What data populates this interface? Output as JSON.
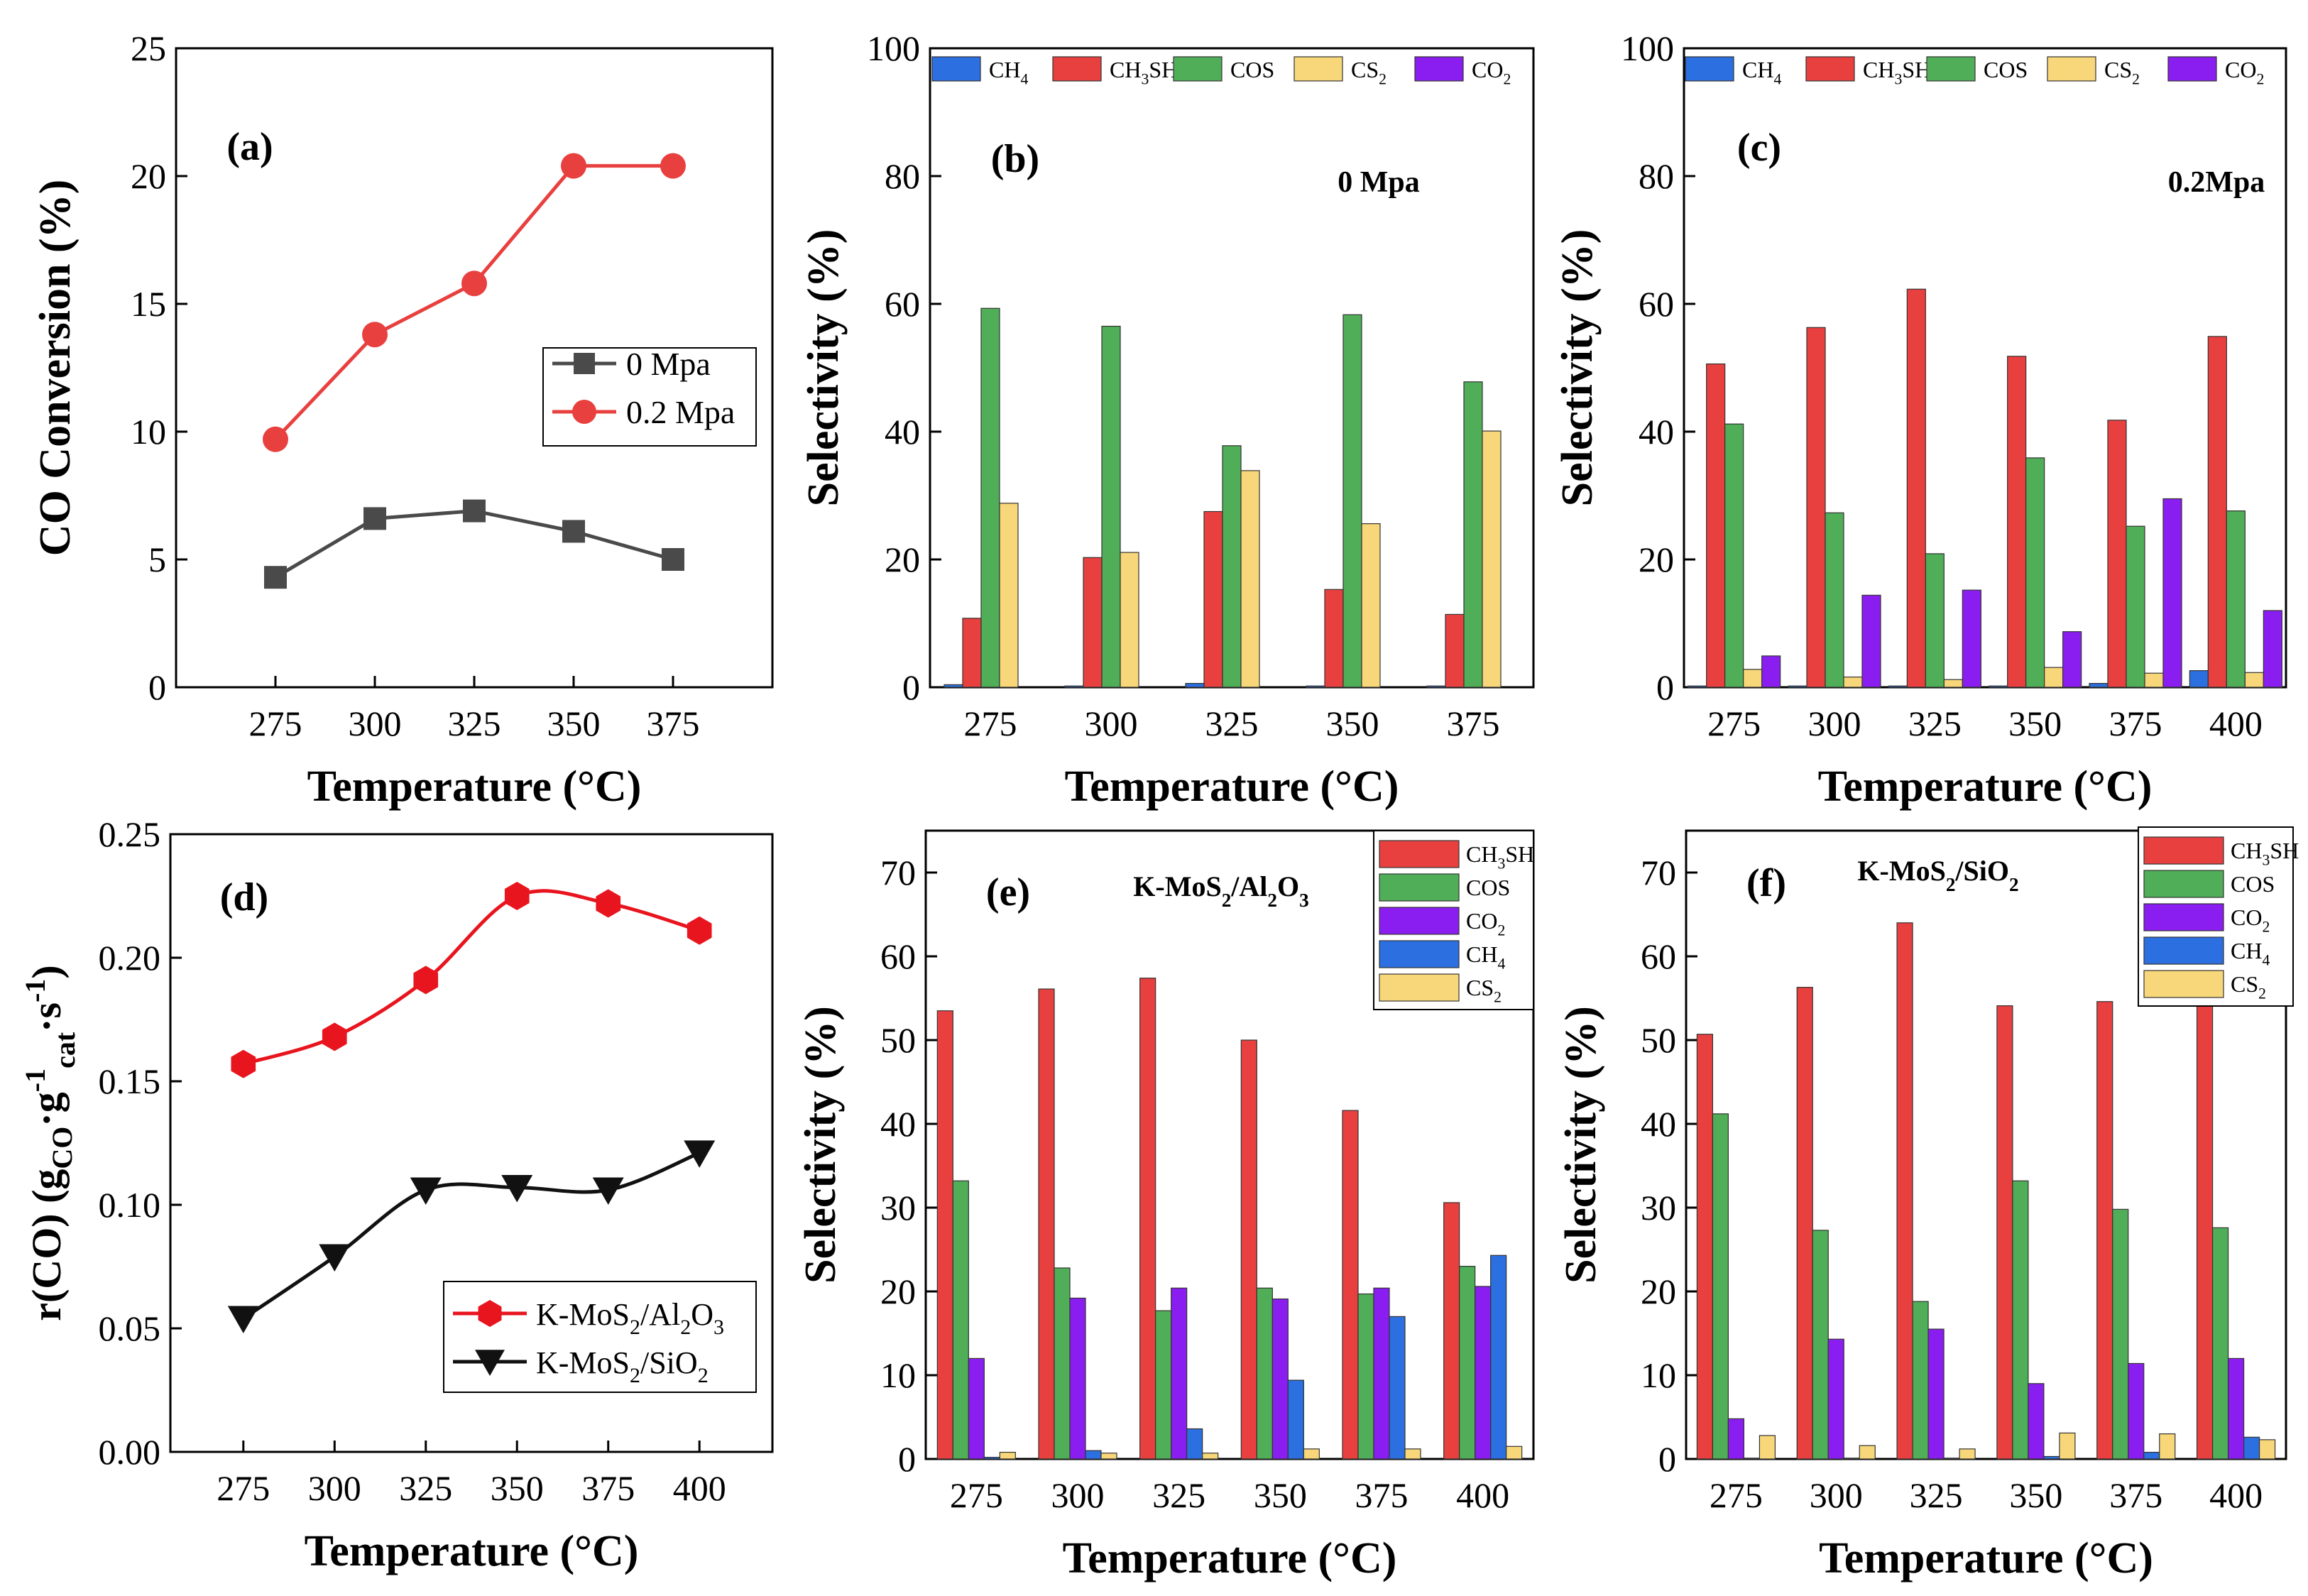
{
  "colors": {
    "CH4": "#2b6fe0",
    "CH3SH": "#e8403f",
    "COS": "#4fae57",
    "CS2": "#f8d77a",
    "CO2": "#8a1ef0",
    "series_0mpa": "#4a4a4a",
    "series_02mpa": "#e8403f",
    "series_al2o3": "#e8141e",
    "series_sio2": "#111111"
  },
  "chart_data": [
    {
      "panel": "a",
      "type": "line",
      "label": "(a)",
      "xlabel": "Temperature (°C)",
      "ylabel": "CO Conversion (%)",
      "ylim": [
        0,
        25
      ],
      "yticks": [
        "0",
        "5",
        "10",
        "15",
        "20",
        "25"
      ],
      "x": [
        275,
        300,
        325,
        350,
        375
      ],
      "xticks": [
        "275",
        "300",
        "325",
        "350",
        "375"
      ],
      "series": [
        {
          "name": "0 Mpa",
          "values": [
            4.3,
            6.6,
            6.9,
            6.1,
            5.0
          ]
        },
        {
          "name": "0.2 Mpa",
          "values": [
            9.7,
            13.8,
            15.8,
            20.4,
            20.4
          ]
        }
      ],
      "legend": "center-right"
    },
    {
      "panel": "b",
      "type": "bar",
      "label": "(b)",
      "annotation": "0 Mpa",
      "xlabel": "Temperature (°C)",
      "ylabel": "Selectivity (%)",
      "ylim": [
        0,
        100
      ],
      "yticks": [
        "0",
        "20",
        "40",
        "60",
        "80",
        "100"
      ],
      "categories": [
        "275",
        "300",
        "325",
        "350",
        "375"
      ],
      "series": [
        {
          "name": "CH4",
          "base": "CH",
          "sub": "4",
          "after": "",
          "values": [
            0.4,
            0.2,
            0.6,
            0.2,
            0.2
          ]
        },
        {
          "name": "CH3SH",
          "base": "CH",
          "sub": "3",
          "after": "SH",
          "values": [
            10.8,
            20.3,
            27.5,
            15.3,
            11.4
          ]
        },
        {
          "name": "COS",
          "base": "COS",
          "sub": "",
          "after": "",
          "values": [
            59.3,
            56.5,
            37.8,
            58.3,
            47.8
          ]
        },
        {
          "name": "CS2",
          "base": "CS",
          "sub": "2",
          "after": "",
          "values": [
            28.8,
            21.1,
            33.9,
            25.6,
            40.1
          ]
        },
        {
          "name": "CO2",
          "base": "CO",
          "sub": "2",
          "after": "",
          "values": [
            0,
            0,
            0,
            0,
            0
          ]
        }
      ],
      "legend": "top"
    },
    {
      "panel": "c",
      "type": "bar",
      "label": "(c)",
      "annotation": "0.2Mpa",
      "xlabel": "Temperature (°C)",
      "ylabel": "Selectivity (%)",
      "ylim": [
        0,
        100
      ],
      "yticks": [
        "0",
        "20",
        "40",
        "60",
        "80",
        "100"
      ],
      "categories": [
        "275",
        "300",
        "325",
        "350",
        "375",
        "400"
      ],
      "series": [
        {
          "name": "CH4",
          "base": "CH",
          "sub": "4",
          "after": "",
          "values": [
            0.2,
            0.2,
            0.2,
            0.2,
            0.6,
            2.6
          ]
        },
        {
          "name": "CH3SH",
          "base": "CH",
          "sub": "3",
          "after": "SH",
          "values": [
            50.6,
            56.3,
            62.3,
            51.8,
            41.8,
            54.9
          ]
        },
        {
          "name": "COS",
          "base": "COS",
          "sub": "",
          "after": "",
          "values": [
            41.2,
            27.3,
            20.9,
            35.9,
            25.2,
            27.6
          ]
        },
        {
          "name": "CS2",
          "base": "CS",
          "sub": "2",
          "after": "",
          "values": [
            2.8,
            1.6,
            1.2,
            3.1,
            2.2,
            2.3
          ]
        },
        {
          "name": "CO2",
          "base": "CO",
          "sub": "2",
          "after": "",
          "values": [
            4.9,
            14.4,
            15.2,
            8.7,
            29.5,
            12.0
          ]
        }
      ],
      "legend": "top"
    },
    {
      "panel": "d",
      "type": "line",
      "label": "(d)",
      "xlabel": "Temperature (°C)",
      "ylabel": "r(CO) (gCO·g⁻¹cat·s⁻¹)",
      "ylim": [
        0,
        0.25
      ],
      "yticks": [
        "0.00",
        "0.05",
        "0.10",
        "0.15",
        "0.20",
        "0.25"
      ],
      "x": [
        275,
        300,
        325,
        350,
        375,
        400
      ],
      "xticks": [
        "275",
        "300",
        "325",
        "350",
        "375",
        "400"
      ],
      "series": [
        {
          "name": "K-MoS2/Al2O3",
          "values": [
            0.157,
            0.168,
            0.191,
            0.225,
            0.222,
            0.211
          ]
        },
        {
          "name": "K-MoS2/SiO2",
          "values": [
            0.054,
            0.079,
            0.106,
            0.107,
            0.106,
            0.121
          ]
        }
      ],
      "legend": "bottom-right"
    },
    {
      "panel": "e",
      "type": "bar",
      "label": "(e)",
      "annotation": "K-MoS2/Al2O3",
      "xlabel": "Temperature (°C)",
      "ylabel": "Selectivity (%)",
      "ylim": [
        0,
        75
      ],
      "yticks": [
        "0",
        "10",
        "20",
        "30",
        "40",
        "50",
        "60",
        "70"
      ],
      "categories": [
        "275",
        "300",
        "325",
        "350",
        "375",
        "400"
      ],
      "series": [
        {
          "name": "CH3SH",
          "base": "CH",
          "sub": "3",
          "after": "SH",
          "values": [
            53.5,
            56.1,
            57.4,
            50.0,
            41.6,
            30.6
          ]
        },
        {
          "name": "COS",
          "base": "COS",
          "sub": "",
          "after": "",
          "values": [
            33.2,
            22.8,
            17.7,
            20.4,
            19.7,
            23.0
          ]
        },
        {
          "name": "CO2",
          "base": "CO",
          "sub": "2",
          "after": "",
          "values": [
            12.0,
            19.2,
            20.4,
            19.1,
            20.4,
            20.6
          ]
        },
        {
          "name": "CH4",
          "base": "CH",
          "sub": "4",
          "after": "",
          "values": [
            0.2,
            1.0,
            3.6,
            9.4,
            17.0,
            24.3
          ]
        },
        {
          "name": "CS2",
          "base": "CS",
          "sub": "2",
          "after": "",
          "values": [
            0.8,
            0.7,
            0.7,
            1.2,
            1.2,
            1.5
          ]
        }
      ],
      "legend": "top-right"
    },
    {
      "panel": "f",
      "type": "bar",
      "label": "(f)",
      "annotation": "K-MoS2/SiO2",
      "xlabel": "Temperature (°C)",
      "ylabel": "Selectivity (%)",
      "ylim": [
        0,
        75
      ],
      "yticks": [
        "0",
        "10",
        "20",
        "30",
        "40",
        "50",
        "60",
        "70"
      ],
      "categories": [
        "275",
        "300",
        "325",
        "350",
        "375",
        "400"
      ],
      "series": [
        {
          "name": "CH3SH",
          "base": "CH",
          "sub": "3",
          "after": "SH",
          "values": [
            50.7,
            56.3,
            64.0,
            54.1,
            54.6,
            55.0
          ]
        },
        {
          "name": "COS",
          "base": "COS",
          "sub": "",
          "after": "",
          "values": [
            41.2,
            27.3,
            18.8,
            33.2,
            29.8,
            27.6
          ]
        },
        {
          "name": "CO2",
          "base": "CO",
          "sub": "2",
          "after": "",
          "values": [
            4.8,
            14.3,
            15.5,
            9.0,
            11.4,
            12.0
          ]
        },
        {
          "name": "CH4",
          "base": "CH",
          "sub": "4",
          "after": "",
          "values": [
            0.1,
            0.1,
            0.1,
            0.3,
            0.8,
            2.6
          ]
        },
        {
          "name": "CS2",
          "base": "CS",
          "sub": "2",
          "after": "",
          "values": [
            2.8,
            1.6,
            1.2,
            3.1,
            3.0,
            2.3
          ]
        }
      ],
      "legend": "top-right"
    }
  ]
}
